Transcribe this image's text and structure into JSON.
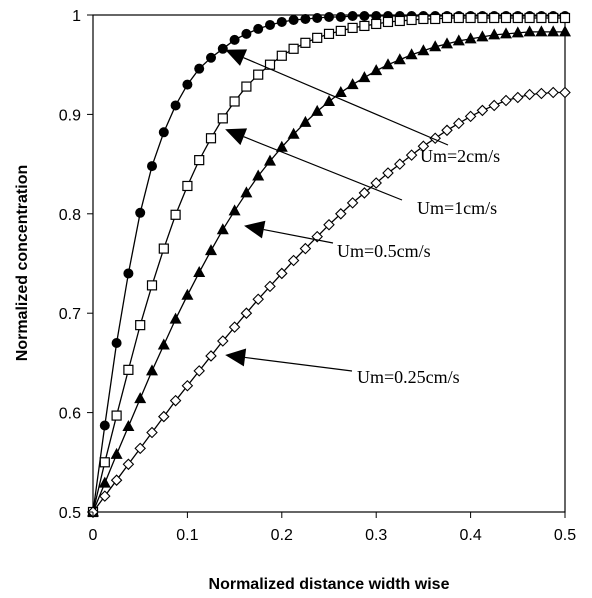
{
  "chart_data": {
    "type": "line",
    "title": "",
    "xlabel": "Normalized distance width wise",
    "ylabel": "Normalized concentration",
    "xlim": [
      0,
      0.5
    ],
    "ylim": [
      0.5,
      1
    ],
    "x_ticks": [
      "0",
      "0.1",
      "0.2",
      "0.3",
      "0.4",
      "0.5"
    ],
    "y_ticks": [
      "0.5",
      "0.6",
      "0.7",
      "0.8",
      "0.9",
      "1"
    ],
    "grid": false,
    "legend": "none",
    "x": [
      0,
      0.0125,
      0.025,
      0.0375,
      0.05,
      0.0625,
      0.075,
      0.0875,
      0.1,
      0.1125,
      0.125,
      0.1375,
      0.15,
      0.1625,
      0.175,
      0.1875,
      0.2,
      0.2125,
      0.225,
      0.2375,
      0.25,
      0.2625,
      0.275,
      0.2875,
      0.3,
      0.3125,
      0.325,
      0.3375,
      0.35,
      0.3625,
      0.375,
      0.3875,
      0.4,
      0.4125,
      0.425,
      0.4375,
      0.45,
      0.4625,
      0.475,
      0.4875,
      0.5
    ],
    "series": [
      {
        "name": "Um=2cm/s",
        "marker": "filled-circle",
        "values": [
          0.5,
          0.587,
          0.67,
          0.74,
          0.801,
          0.848,
          0.882,
          0.909,
          0.93,
          0.946,
          0.957,
          0.966,
          0.975,
          0.981,
          0.986,
          0.99,
          0.993,
          0.995,
          0.996,
          0.997,
          0.998,
          0.998,
          0.999,
          0.999,
          0.999,
          0.999,
          0.999,
          0.999,
          0.999,
          0.999,
          0.999,
          0.999,
          0.999,
          0.999,
          0.999,
          0.999,
          0.999,
          0.999,
          0.999,
          0.999,
          0.999
        ]
      },
      {
        "name": "Um=1cm/s",
        "marker": "open-square",
        "values": [
          0.5,
          0.55,
          0.597,
          0.643,
          0.688,
          0.728,
          0.765,
          0.799,
          0.828,
          0.854,
          0.876,
          0.896,
          0.913,
          0.928,
          0.94,
          0.95,
          0.959,
          0.966,
          0.972,
          0.977,
          0.981,
          0.984,
          0.987,
          0.989,
          0.991,
          0.993,
          0.994,
          0.995,
          0.996,
          0.996,
          0.997,
          0.997,
          0.997,
          0.997,
          0.997,
          0.997,
          0.997,
          0.997,
          0.997,
          0.997,
          0.997
        ]
      },
      {
        "name": "Um=0.5cm/s",
        "marker": "filled-triangle",
        "values": [
          0.5,
          0.529,
          0.558,
          0.586,
          0.614,
          0.642,
          0.668,
          0.694,
          0.718,
          0.741,
          0.763,
          0.784,
          0.803,
          0.821,
          0.838,
          0.853,
          0.867,
          0.88,
          0.892,
          0.903,
          0.913,
          0.922,
          0.93,
          0.937,
          0.944,
          0.95,
          0.955,
          0.96,
          0.964,
          0.968,
          0.971,
          0.974,
          0.976,
          0.978,
          0.98,
          0.981,
          0.982,
          0.983,
          0.983,
          0.983,
          0.983
        ]
      },
      {
        "name": "Um=0.25cm/s",
        "marker": "open-diamond",
        "values": [
          0.5,
          0.516,
          0.532,
          0.548,
          0.564,
          0.58,
          0.596,
          0.612,
          0.627,
          0.642,
          0.657,
          0.672,
          0.686,
          0.7,
          0.714,
          0.727,
          0.74,
          0.753,
          0.765,
          0.777,
          0.789,
          0.8,
          0.811,
          0.821,
          0.831,
          0.841,
          0.85,
          0.859,
          0.868,
          0.876,
          0.884,
          0.891,
          0.898,
          0.904,
          0.909,
          0.914,
          0.917,
          0.92,
          0.921,
          0.922,
          0.922
        ]
      }
    ],
    "annotations": [
      {
        "text": "Um=2cm/s",
        "series": "Um=2cm/s",
        "arrow_to": [
          0.14,
          0.965
        ]
      },
      {
        "text": "Um=1cm/s",
        "series": "Um=1cm/s",
        "arrow_to": [
          0.14,
          0.885
        ]
      },
      {
        "text": "Um=0.5cm/s",
        "series": "Um=0.5cm/s",
        "arrow_to": [
          0.16,
          0.788
        ]
      },
      {
        "text": "Um=0.25cm/s",
        "series": "Um=0.25cm/s",
        "arrow_to": [
          0.14,
          0.658
        ]
      }
    ]
  }
}
